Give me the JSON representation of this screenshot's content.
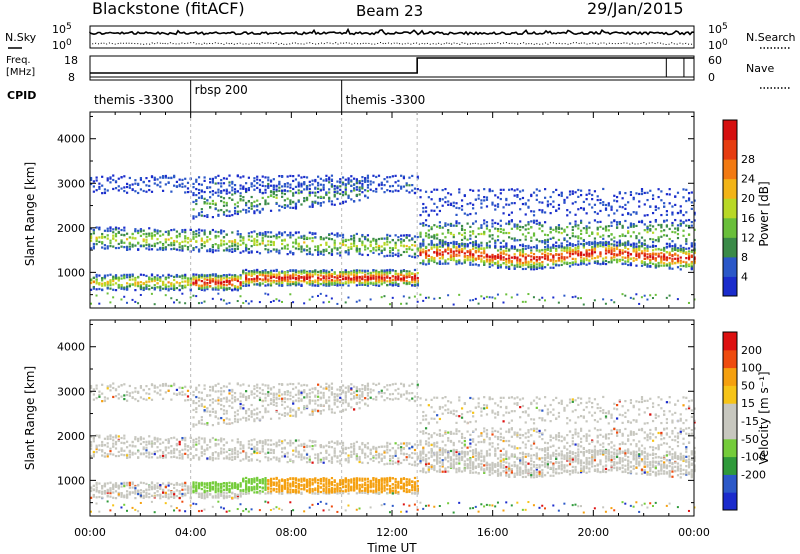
{
  "header": {
    "station": "Blackstone (fitACF)",
    "beam": "Beam 23",
    "date": "29/Jan/2015"
  },
  "colors": {
    "power_scale": [
      "#1a2ccc",
      "#2a57c8",
      "#3a8a48",
      "#69bf3a",
      "#b8d826",
      "#f2b417",
      "#f27a12",
      "#e63c10",
      "#d60f0f"
    ],
    "velocity_scale": [
      "#dd1010",
      "#ee4b0e",
      "#f5a00f",
      "#f6c418",
      "#c7c7bf",
      "#c7c7bf",
      "#74cc3a",
      "#2f9a3a",
      "#2c59c8",
      "#1b2bcc"
    ]
  },
  "chart_data": [
    {
      "type": "line",
      "panel": "noise",
      "left_label": "N.Sky",
      "right_label": "N.Search",
      "left_ticks": [
        "10^5",
        "10^0"
      ],
      "right_ticks": [
        "10^5",
        "10^0"
      ],
      "scale": "log"
    },
    {
      "type": "line",
      "panel": "frequency",
      "left_label_lines": [
        "Freq.",
        "[MHz]"
      ],
      "left_ticks": [
        18,
        8
      ],
      "right_label": "Nave",
      "right_ticks": [
        60,
        0
      ],
      "freq_step_hours": [
        0,
        13.0,
        24
      ],
      "nave_spikes_hours": [
        22.9,
        23.6
      ]
    },
    {
      "type": "table",
      "panel": "cpid",
      "label": "CPID",
      "programs": [
        {
          "name": "themis -3300",
          "start_hours": 0
        },
        {
          "name": "rbsp 200",
          "start_hours": 4.0
        },
        {
          "name": "themis -3300",
          "start_hours": 10.0
        }
      ]
    },
    {
      "type": "heatmap",
      "panel": "power",
      "ylabel": "Slant Range [km]",
      "ylim": [
        200,
        4600
      ],
      "yticks": [
        1000,
        2000,
        3000,
        4000
      ],
      "xlim": [
        0,
        24
      ],
      "colorbar_label": "Power [dB]",
      "colorbar_ticks": [
        4,
        8,
        12,
        16,
        20,
        24,
        28
      ]
    },
    {
      "type": "heatmap",
      "panel": "velocity",
      "ylabel": "Slant Range [km]",
      "ylim": [
        200,
        4600
      ],
      "yticks": [
        1000,
        2000,
        3000,
        4000
      ],
      "xlim": [
        0,
        24
      ],
      "xlabel": "Time UT",
      "xticks": [
        "00:00",
        "04:00",
        "08:00",
        "12:00",
        "16:00",
        "20:00",
        "00:00"
      ],
      "colorbar_label": "Velocity [m s⁻¹]",
      "colorbar_ticks": [
        200,
        100,
        50,
        15,
        -15,
        -50,
        -100,
        -200
      ]
    }
  ]
}
